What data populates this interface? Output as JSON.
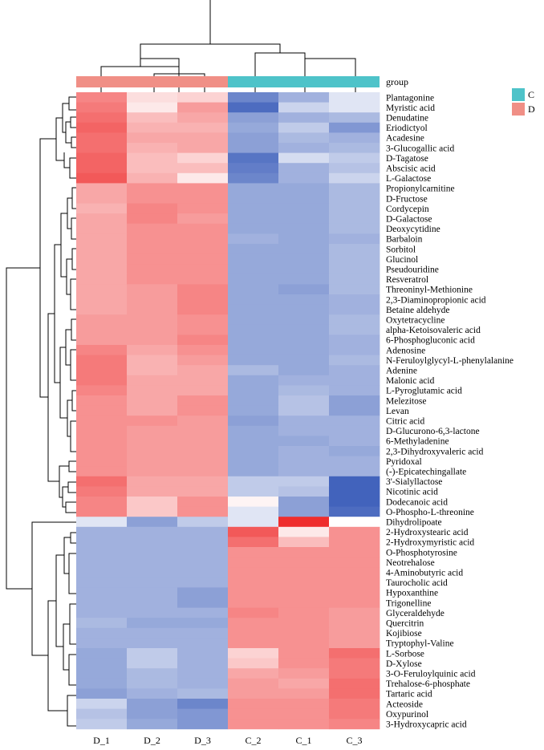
{
  "chart_data": {
    "type": "heatmap",
    "columns": [
      "D_1",
      "D_2",
      "D_3",
      "C_2",
      "C_1",
      "C_3"
    ],
    "column_groups": [
      "D",
      "D",
      "D",
      "C",
      "C",
      "C"
    ],
    "group_label": "group",
    "legend": [
      {
        "label": "C",
        "color": "#4ec3c9"
      },
      {
        "label": "D",
        "color": "#f08f86"
      }
    ],
    "color_scale": {
      "min": -2,
      "mid": 0,
      "max": 2,
      "low": "#2d52b5",
      "midColor": "#ffffff",
      "high": "#ee2222"
    },
    "rows": [
      "Plantagonine",
      "Myristic acid",
      "Denudatine",
      "Eriodictyol",
      "Acadesine",
      "3-Glucogallic acid",
      "D-Tagatose",
      "Abscisic acid",
      "L-Galactose",
      "Propionylcarnitine",
      "D-Fructose",
      "Cordycepin",
      "D-Galactose",
      "Deoxycytidine",
      "Barbaloin",
      "Sorbitol",
      "Glucinol",
      "Pseudouridine",
      "Resveratrol",
      "Threoninyl-Methionine",
      "2,3-Diaminopropionic acid",
      "Betaine aldehyde",
      "Oxytetracycline",
      "alpha-Ketoisovaleric acid",
      "6-Phosphogluconic acid",
      "Adenosine",
      "N-Feruloylglycyl-L-phenylalanine",
      "Adenine",
      "Malonic acid",
      "L-Pyroglutamic acid",
      "Melezitose",
      "Levan",
      "Citric acid",
      "D-Glucurono-6,3-lactone",
      "6-Methyladenine",
      "2,3-Dihydroxyvaleric acid",
      "Pyridoxal",
      "(-)-Epicatechingallate",
      "3'-Sialyllactose",
      "Nicotinic acid",
      "Dodecanoic acid",
      "O-Phospho-L-threonine",
      "Dihydrolipoate",
      "2-Hydroxystearic acid",
      "2-Hydroxymyristic acid",
      "O-Phosphotyrosine",
      "Neotrehalose",
      "4-Aminobutyric acid",
      "Taurocholic acid",
      "Hypoxanthine",
      "Trigonelline",
      "Glyceraldehyde",
      "Quercitrin",
      "Kojibiose",
      "Tryptophyl-Valine",
      "L-Sorbose",
      "D-Xylose",
      "3-O-Feruloylquinic acid",
      "Trehalose-6-phosphate",
      "Tartaric acid",
      "Acteoside",
      "Oxypurinol",
      "3-Hydroxycapric acid"
    ],
    "values": [
      [
        1.1,
        0.3,
        0.4,
        -1.4,
        -0.9,
        -0.3
      ],
      [
        1.2,
        0.2,
        0.9,
        -1.7,
        -0.5,
        -0.3
      ],
      [
        1.3,
        0.6,
        0.8,
        -1.1,
        -0.9,
        -0.8
      ],
      [
        1.4,
        0.7,
        0.7,
        -1.0,
        -0.6,
        -1.2
      ],
      [
        1.3,
        0.8,
        0.8,
        -1.1,
        -0.8,
        -0.9
      ],
      [
        1.3,
        0.7,
        0.8,
        -1.1,
        -0.9,
        -0.8
      ],
      [
        1.4,
        0.6,
        0.4,
        -1.6,
        -0.4,
        -0.6
      ],
      [
        1.4,
        0.6,
        0.6,
        -1.5,
        -0.9,
        -0.7
      ],
      [
        1.5,
        0.7,
        0.2,
        -1.4,
        -0.9,
        -0.5
      ],
      [
        0.8,
        1.0,
        1.0,
        -1.0,
        -1.0,
        -0.8
      ],
      [
        0.8,
        1.0,
        1.0,
        -1.0,
        -1.0,
        -0.8
      ],
      [
        0.7,
        1.1,
        1.0,
        -1.0,
        -1.0,
        -0.8
      ],
      [
        0.8,
        1.1,
        0.9,
        -1.0,
        -1.0,
        -0.8
      ],
      [
        0.8,
        1.0,
        1.0,
        -1.0,
        -1.0,
        -0.8
      ],
      [
        0.8,
        1.0,
        1.0,
        -0.9,
        -1.0,
        -0.9
      ],
      [
        0.8,
        1.0,
        1.0,
        -1.0,
        -1.0,
        -0.8
      ],
      [
        0.8,
        1.0,
        1.0,
        -1.0,
        -1.0,
        -0.8
      ],
      [
        0.8,
        1.0,
        1.0,
        -1.0,
        -1.0,
        -0.8
      ],
      [
        0.8,
        1.0,
        1.0,
        -1.0,
        -1.0,
        -0.8
      ],
      [
        0.8,
        0.9,
        1.1,
        -1.0,
        -1.1,
        -0.8
      ],
      [
        0.8,
        0.9,
        1.1,
        -1.0,
        -1.0,
        -0.9
      ],
      [
        0.8,
        0.9,
        1.1,
        -1.0,
        -1.0,
        -0.9
      ],
      [
        0.9,
        0.9,
        1.0,
        -1.0,
        -1.0,
        -0.8
      ],
      [
        0.9,
        0.9,
        1.0,
        -1.0,
        -1.0,
        -0.8
      ],
      [
        0.9,
        0.9,
        1.1,
        -1.0,
        -1.0,
        -0.9
      ],
      [
        1.1,
        0.8,
        1.0,
        -1.0,
        -1.0,
        -0.9
      ],
      [
        1.2,
        0.7,
        0.9,
        -1.0,
        -1.0,
        -0.8
      ],
      [
        1.2,
        0.7,
        0.8,
        -0.8,
        -1.0,
        -0.9
      ],
      [
        1.2,
        0.8,
        0.8,
        -1.0,
        -0.9,
        -0.9
      ],
      [
        1.1,
        0.8,
        0.8,
        -1.0,
        -0.8,
        -0.9
      ],
      [
        1.0,
        0.8,
        1.0,
        -1.0,
        -0.7,
        -1.1
      ],
      [
        1.0,
        0.8,
        1.0,
        -1.0,
        -0.7,
        -1.1
      ],
      [
        1.0,
        1.0,
        0.9,
        -1.1,
        -0.9,
        -0.9
      ],
      [
        1.0,
        0.9,
        0.9,
        -1.0,
        -0.9,
        -0.9
      ],
      [
        1.0,
        0.9,
        0.9,
        -1.0,
        -1.0,
        -0.9
      ],
      [
        1.0,
        0.9,
        0.9,
        -1.0,
        -0.9,
        -1.0
      ],
      [
        1.0,
        0.9,
        0.9,
        -1.0,
        -0.9,
        -0.9
      ],
      [
        1.0,
        0.9,
        0.9,
        -1.0,
        -0.9,
        -0.9
      ],
      [
        1.3,
        0.8,
        0.8,
        -0.6,
        -0.6,
        -1.8
      ],
      [
        1.2,
        0.8,
        0.8,
        -0.6,
        -0.7,
        -1.8
      ],
      [
        1.1,
        0.5,
        1.0,
        0.1,
        -1.1,
        -1.8
      ],
      [
        1.1,
        0.5,
        1.0,
        -0.3,
        -1.1,
        -1.7
      ],
      [
        -0.3,
        -1.1,
        -0.6,
        -0.3,
        1.9,
        0.0
      ],
      [
        -0.9,
        -0.9,
        -0.9,
        1.5,
        0.2,
        1.0
      ],
      [
        -0.9,
        -0.9,
        -0.9,
        1.3,
        0.6,
        1.0
      ],
      [
        -0.9,
        -0.9,
        -0.9,
        1.0,
        1.0,
        1.0
      ],
      [
        -0.9,
        -0.9,
        -0.9,
        1.0,
        1.0,
        1.0
      ],
      [
        -0.9,
        -0.9,
        -0.9,
        1.0,
        1.0,
        1.0
      ],
      [
        -0.9,
        -0.9,
        -0.9,
        1.0,
        1.0,
        1.0
      ],
      [
        -0.9,
        -0.9,
        -1.1,
        1.0,
        1.0,
        1.0
      ],
      [
        -0.9,
        -0.9,
        -1.1,
        1.0,
        1.0,
        1.0
      ],
      [
        -0.9,
        -0.9,
        -0.9,
        1.1,
        1.0,
        0.9
      ],
      [
        -0.8,
        -1.0,
        -1.0,
        1.0,
        1.0,
        0.9
      ],
      [
        -0.9,
        -0.9,
        -0.9,
        1.0,
        1.0,
        0.9
      ],
      [
        -0.9,
        -0.9,
        -0.9,
        1.0,
        1.0,
        0.9
      ],
      [
        -1.0,
        -0.6,
        -0.9,
        0.4,
        1.0,
        1.3
      ],
      [
        -1.0,
        -0.6,
        -0.9,
        0.5,
        1.0,
        1.2
      ],
      [
        -1.0,
        -0.8,
        -0.9,
        0.8,
        0.9,
        1.2
      ],
      [
        -1.0,
        -0.8,
        -0.9,
        0.9,
        0.8,
        1.3
      ],
      [
        -1.1,
        -0.9,
        -0.8,
        0.9,
        0.9,
        1.3
      ],
      [
        -0.5,
        -1.1,
        -1.4,
        1.0,
        1.0,
        1.2
      ],
      [
        -0.7,
        -1.1,
        -1.2,
        1.0,
        1.0,
        1.2
      ],
      [
        -0.6,
        -1.0,
        -1.2,
        1.0,
        1.0,
        1.1
      ]
    ]
  }
}
